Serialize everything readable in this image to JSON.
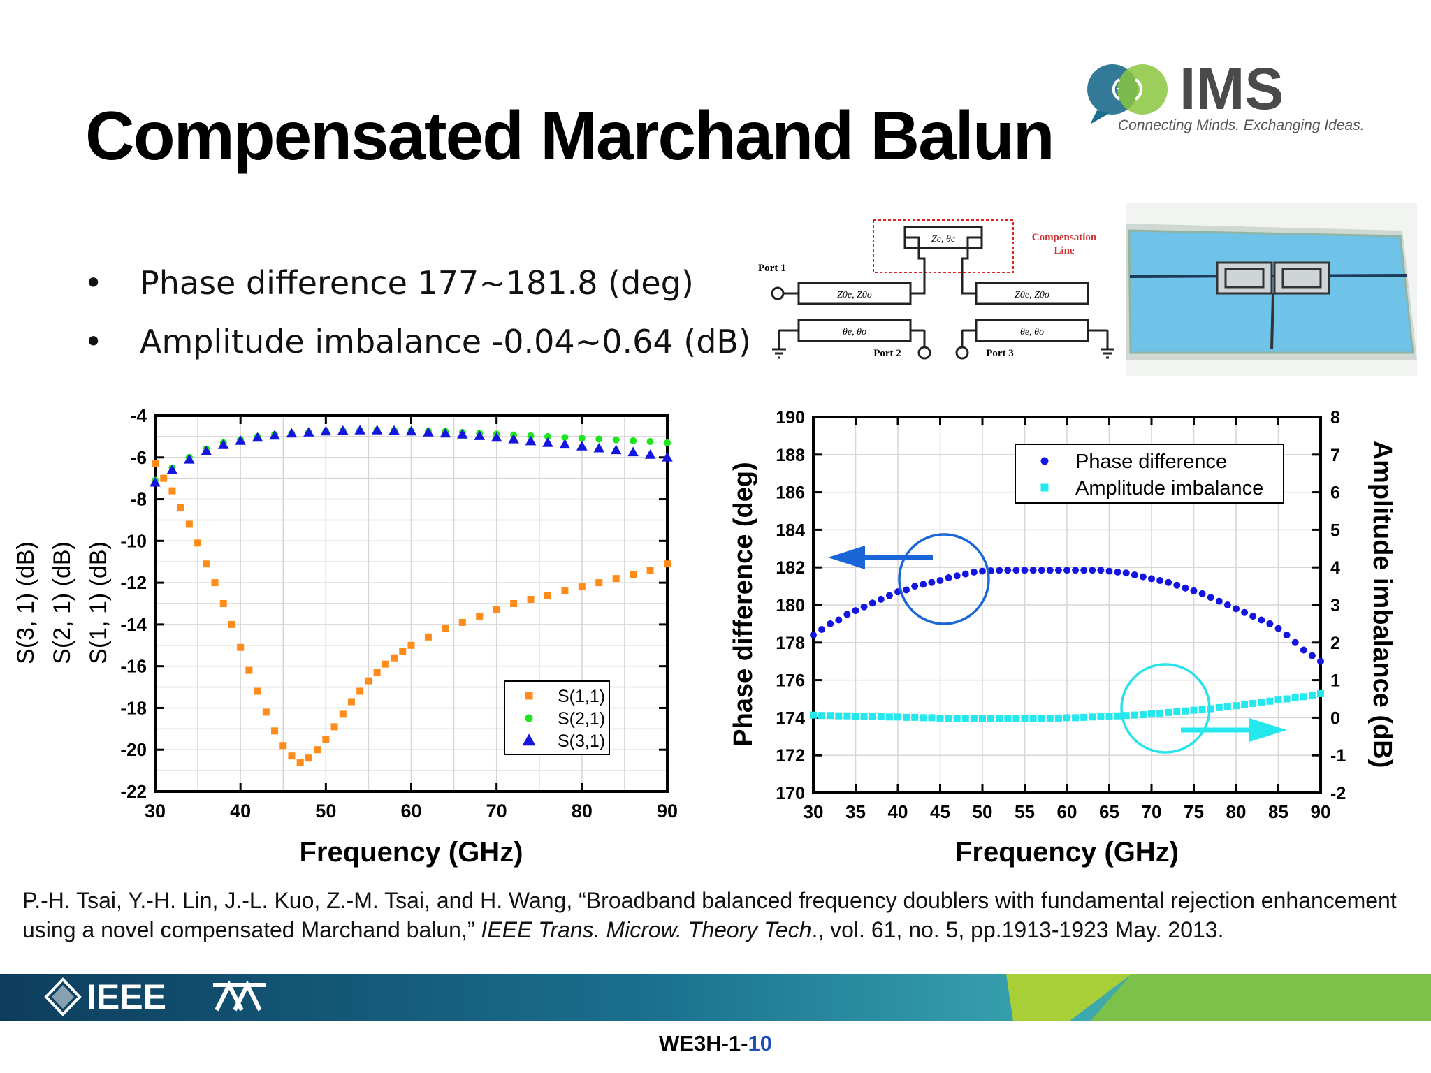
{
  "slide": {
    "title": "Compensated Marchand Balun",
    "bullets": [
      "Phase difference 177~181.8 (deg)",
      "Amplitude imbalance -0.04~0.64 (dB)"
    ],
    "bullet_symbol": "•",
    "logo": {
      "text": "IMS",
      "tagline": "Connecting Minds. Exchanging Ideas."
    },
    "schematic": {
      "compensation_label_1": "Compensation",
      "compensation_label_2": "Line",
      "port1": "Port 1",
      "port2": "Port 2",
      "port3": "Port 3",
      "zc_label": "Zc, θc",
      "left_top_label": "Z0e, Z0o",
      "right_top_label": "Z0e, Z0o",
      "left_bottom_label": "θe, θo",
      "right_bottom_label": "θe, θo"
    },
    "citation": {
      "part1": "P.-H. Tsai, Y.-H. Lin, J.-L. Kuo, Z.-M. Tsai, and H. Wang, “Broadband balanced frequency doublers with fundamental rejection enhancement using a novel compensated Marchand balun,” ",
      "journal": "IEEE Trans. Microw. Theory Tech",
      "part2": "., vol. 61, no. 5, pp.1913-1923 May. 2013."
    },
    "footer": {
      "ieee": "IEEE",
      "slide_code": "WE3H-1-",
      "slide_no": "10"
    },
    "colors": {
      "orange": "#ff8c1a",
      "green": "#1ee61e",
      "blue": "#1515e0",
      "cyan": "#25e8ee",
      "circle_blue": "#1a66d9",
      "circle_cyan": "#2ae3ea"
    }
  },
  "chart_data": [
    {
      "type": "scatter",
      "xlabel": "Frequency (GHz)",
      "ylabel_lines": [
        "S(3, 1) (dB)",
        "S(2, 1) (dB)",
        "S(1, 1) (dB)"
      ],
      "xlim": [
        30,
        90
      ],
      "ylim": [
        -22,
        -4
      ],
      "xticks": [
        30,
        40,
        50,
        60,
        70,
        80,
        90
      ],
      "yticks": [
        -22,
        -20,
        -18,
        -16,
        -14,
        -12,
        -10,
        -8,
        -6,
        -4
      ],
      "grid": true,
      "legend": "bottom-right",
      "series": [
        {
          "name": "S(1,1)",
          "marker": "square",
          "color": "#ff8c1a",
          "x": [
            30,
            31,
            32,
            33,
            34,
            35,
            36,
            37,
            38,
            39,
            40,
            41,
            42,
            43,
            44,
            45,
            46,
            47,
            48,
            49,
            50,
            51,
            52,
            53,
            54,
            55,
            56,
            57,
            58,
            59,
            60,
            62,
            64,
            66,
            68,
            70,
            72,
            74,
            76,
            78,
            80,
            82,
            84,
            86,
            88,
            90
          ],
          "values": [
            -6.3,
            -7.0,
            -7.6,
            -8.4,
            -9.2,
            -10.1,
            -11.1,
            -12.0,
            -13.0,
            -14.0,
            -15.1,
            -16.2,
            -17.2,
            -18.2,
            -19.1,
            -19.8,
            -20.3,
            -20.6,
            -20.4,
            -20.0,
            -19.5,
            -18.9,
            -18.3,
            -17.7,
            -17.2,
            -16.7,
            -16.3,
            -15.9,
            -15.6,
            -15.3,
            -15.0,
            -14.6,
            -14.2,
            -13.9,
            -13.6,
            -13.3,
            -13.0,
            -12.8,
            -12.6,
            -12.4,
            -12.2,
            -12.0,
            -11.8,
            -11.6,
            -11.4,
            -11.1
          ]
        },
        {
          "name": "S(2,1)",
          "marker": "circle",
          "color": "#1ee61e",
          "x": [
            30,
            32,
            34,
            36,
            38,
            40,
            42,
            44,
            46,
            48,
            50,
            52,
            54,
            56,
            58,
            60,
            62,
            64,
            66,
            68,
            70,
            72,
            74,
            76,
            78,
            80,
            82,
            84,
            86,
            88,
            90
          ],
          "values": [
            -7.1,
            -6.5,
            -6.0,
            -5.6,
            -5.3,
            -5.15,
            -5.0,
            -4.9,
            -4.85,
            -4.8,
            -4.75,
            -4.72,
            -4.7,
            -4.7,
            -4.7,
            -4.72,
            -4.74,
            -4.76,
            -4.8,
            -4.84,
            -4.88,
            -4.92,
            -4.96,
            -5.0,
            -5.04,
            -5.08,
            -5.12,
            -5.16,
            -5.2,
            -5.24,
            -5.3
          ]
        },
        {
          "name": "S(3,1)",
          "marker": "triangle",
          "color": "#1515e0",
          "x": [
            30,
            32,
            34,
            36,
            38,
            40,
            42,
            44,
            46,
            48,
            50,
            52,
            54,
            56,
            58,
            60,
            62,
            64,
            66,
            68,
            70,
            72,
            74,
            76,
            78,
            80,
            82,
            84,
            86,
            88,
            90
          ],
          "values": [
            -7.2,
            -6.6,
            -6.1,
            -5.7,
            -5.4,
            -5.2,
            -5.05,
            -4.95,
            -4.85,
            -4.8,
            -4.75,
            -4.72,
            -4.7,
            -4.7,
            -4.72,
            -4.75,
            -4.8,
            -4.85,
            -4.9,
            -4.97,
            -5.05,
            -5.13,
            -5.22,
            -5.3,
            -5.38,
            -5.47,
            -5.56,
            -5.65,
            -5.75,
            -5.87,
            -6.0
          ]
        }
      ]
    },
    {
      "type": "scatter",
      "xlabel": "Frequency (GHz)",
      "ylabel_left": "Phase difference (deg)",
      "ylabel_right": "Amplitude imbalance (dB)",
      "xlim": [
        30,
        90
      ],
      "ylim_left": [
        170,
        190
      ],
      "ylim_right": [
        -2,
        8
      ],
      "xticks": [
        30,
        35,
        40,
        45,
        50,
        55,
        60,
        65,
        70,
        75,
        80,
        85,
        90
      ],
      "yticks_left": [
        170,
        172,
        174,
        176,
        178,
        180,
        182,
        184,
        186,
        188,
        190
      ],
      "yticks_right": [
        -2,
        -1,
        0,
        1,
        2,
        3,
        4,
        5,
        6,
        7,
        8
      ],
      "grid": true,
      "legend": "top-right",
      "series": [
        {
          "name": "Phase difference",
          "axis": "left",
          "marker": "circle",
          "color": "#1515e0",
          "x": [
            30,
            31,
            32,
            33,
            34,
            35,
            36,
            37,
            38,
            39,
            40,
            41,
            42,
            43,
            44,
            45,
            46,
            47,
            48,
            49,
            50,
            51,
            52,
            53,
            54,
            55,
            56,
            57,
            58,
            59,
            60,
            61,
            62,
            63,
            64,
            65,
            66,
            67,
            68,
            69,
            70,
            71,
            72,
            73,
            74,
            75,
            76,
            77,
            78,
            79,
            80,
            81,
            82,
            83,
            84,
            85,
            86,
            87,
            88,
            89,
            90
          ],
          "values": [
            178.4,
            178.7,
            179.0,
            179.2,
            179.5,
            179.7,
            179.9,
            180.1,
            180.3,
            180.5,
            180.7,
            180.8,
            181.0,
            181.1,
            181.2,
            181.3,
            181.45,
            181.55,
            181.65,
            181.75,
            181.8,
            181.82,
            181.84,
            181.85,
            181.85,
            181.85,
            181.85,
            181.85,
            181.85,
            181.85,
            181.85,
            181.85,
            181.85,
            181.85,
            181.85,
            181.8,
            181.75,
            181.7,
            181.6,
            181.5,
            181.4,
            181.3,
            181.2,
            181.05,
            180.9,
            180.75,
            180.6,
            180.4,
            180.2,
            180.0,
            179.8,
            179.6,
            179.4,
            179.2,
            179.0,
            178.75,
            178.4,
            178.0,
            177.6,
            177.3,
            177.0
          ]
        },
        {
          "name": "Amplitude imbalance",
          "axis": "right",
          "marker": "square",
          "color": "#25e8ee",
          "x": [
            30,
            31,
            32,
            33,
            34,
            35,
            36,
            37,
            38,
            39,
            40,
            41,
            42,
            43,
            44,
            45,
            46,
            47,
            48,
            49,
            50,
            51,
            52,
            53,
            54,
            55,
            56,
            57,
            58,
            59,
            60,
            61,
            62,
            63,
            64,
            65,
            66,
            67,
            68,
            69,
            70,
            71,
            72,
            73,
            74,
            75,
            76,
            77,
            78,
            79,
            80,
            81,
            82,
            83,
            84,
            85,
            86,
            87,
            88,
            89,
            90
          ],
          "values": [
            0.07,
            0.06,
            0.06,
            0.05,
            0.05,
            0.04,
            0.04,
            0.03,
            0.03,
            0.02,
            0.02,
            0.01,
            0.01,
            0.0,
            0.0,
            -0.01,
            -0.01,
            -0.02,
            -0.02,
            -0.02,
            -0.03,
            -0.03,
            -0.03,
            -0.03,
            -0.03,
            -0.02,
            -0.02,
            -0.02,
            -0.01,
            -0.01,
            0.0,
            0.0,
            0.01,
            0.02,
            0.03,
            0.04,
            0.05,
            0.06,
            0.07,
            0.08,
            0.1,
            0.12,
            0.14,
            0.16,
            0.18,
            0.2,
            0.22,
            0.24,
            0.27,
            0.3,
            0.32,
            0.35,
            0.38,
            0.41,
            0.44,
            0.47,
            0.5,
            0.53,
            0.56,
            0.6,
            0.64
          ]
        }
      ],
      "annotations": {
        "phase_arrow": "left",
        "amplitude_arrow": "right"
      }
    }
  ]
}
